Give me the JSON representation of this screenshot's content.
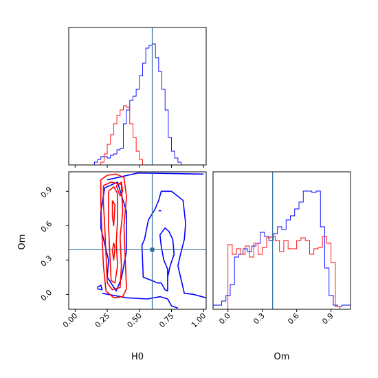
{
  "chart_data": {
    "type": "corner",
    "parameters": [
      "H0",
      "Om"
    ],
    "truth": {
      "H0": 0.6,
      "Om": 0.39
    },
    "colors": {
      "blue": "#0000ff",
      "red": "#ff0000",
      "truth": "#2f6f9f"
    },
    "ranges": {
      "H0": [
        -0.05,
        1.02
      ],
      "Om": [
        -0.13,
        1.07
      ]
    },
    "ticks": {
      "H0": {
        "values": [
          0.0,
          0.25,
          0.5,
          0.75,
          1.0
        ],
        "labels": [
          "0.00",
          "0.25",
          "0.50",
          "0.75",
          "1.00"
        ]
      },
      "Om": {
        "values": [
          0.0,
          0.3,
          0.6,
          0.9
        ],
        "labels": [
          "0.0",
          "0.3",
          "0.6",
          "0.9"
        ]
      }
    },
    "xlabels": {
      "H0": "H0",
      "Om": "Om"
    },
    "ylabels": {
      "Om": "Om"
    },
    "hist_H0": {
      "bin_width": 0.025,
      "blue": {
        "edges_start": 0.15,
        "counts": [
          0.02,
          0.04,
          0.06,
          0.06,
          0.05,
          0.07,
          0.08,
          0.11,
          0.12,
          0.3,
          0.4,
          0.47,
          0.5,
          0.55,
          0.65,
          0.74,
          0.85,
          0.87,
          0.88,
          0.78,
          0.68,
          0.55,
          0.4,
          0.2,
          0.1,
          0.05,
          0.02
        ]
      },
      "red": {
        "edges_start": 0.2,
        "counts": [
          0.02,
          0.08,
          0.15,
          0.22,
          0.3,
          0.36,
          0.4,
          0.43,
          0.42,
          0.3,
          0.2,
          0.1,
          0.04
        ]
      }
    },
    "hist_Om": {
      "bin_width": 0.0375,
      "blue": {
        "edges_start": -0.13,
        "counts": [
          0.03,
          0.03,
          0.06,
          0.1,
          0.18,
          0.38,
          0.4,
          0.44,
          0.42,
          0.46,
          0.48,
          0.56,
          0.53,
          0.5,
          0.55,
          0.6,
          0.58,
          0.65,
          0.68,
          0.73,
          0.78,
          0.86,
          0.86,
          0.85,
          0.86,
          0.6,
          0.3,
          0.1,
          0.03,
          0.02,
          0.03,
          0.03
        ]
      },
      "red": {
        "edges_start": 0.0,
        "counts": [
          0.47,
          0.4,
          0.44,
          0.4,
          0.46,
          0.38,
          0.48,
          0.4,
          0.45,
          0.52,
          0.53,
          0.5,
          0.42,
          0.5,
          0.44,
          0.44,
          0.5,
          0.52,
          0.5,
          0.4,
          0.44,
          0.45,
          0.53,
          0.48,
          0.34,
          0.02
        ]
      }
    },
    "contours": {
      "blue": [
        [
          [
            0.17,
            0.05
          ],
          [
            0.21,
            0.04
          ],
          [
            0.2,
            0.08
          ],
          [
            0.17,
            0.06
          ]
        ],
        [
          [
            0.2,
            0.58
          ],
          [
            0.26,
            0.3
          ],
          [
            0.25,
            0.15
          ],
          [
            0.32,
            0.03
          ],
          [
            0.36,
            0.14
          ],
          [
            0.4,
            0.38
          ],
          [
            0.4,
            0.72
          ],
          [
            0.33,
            0.98
          ],
          [
            0.23,
            0.93
          ],
          [
            0.2,
            0.72
          ],
          [
            0.2,
            0.58
          ]
        ],
        [
          [
            0.25,
            1.0
          ],
          [
            0.49,
            1.06
          ],
          [
            1.0,
            1.05
          ]
        ],
        [
          [
            0.21,
            0.01
          ],
          [
            0.4,
            -0.03
          ],
          [
            0.56,
            -0.04
          ],
          [
            0.66,
            -0.02
          ],
          [
            0.72,
            -0.04
          ],
          [
            0.75,
            -0.1
          ],
          [
            0.8,
            -0.12
          ]
        ],
        [
          [
            1.02,
            -0.03
          ],
          [
            0.92,
            0.0
          ],
          [
            0.85,
            0.01
          ],
          [
            0.8,
            0.25
          ],
          [
            0.82,
            0.35
          ],
          [
            0.85,
            0.48
          ],
          [
            0.86,
            0.62
          ],
          [
            0.84,
            0.82
          ],
          [
            0.75,
            0.9
          ],
          [
            0.67,
            0.9
          ],
          [
            0.65,
            0.82
          ],
          [
            0.62,
            0.74
          ],
          [
            0.57,
            0.65
          ],
          [
            0.54,
            0.48
          ],
          [
            0.52,
            0.43
          ],
          [
            0.53,
            0.15
          ],
          [
            0.6,
            0.12
          ],
          [
            0.64,
            0.1
          ],
          [
            0.67,
            0.1
          ],
          [
            0.7,
            0.04
          ],
          [
            0.72,
            0.03
          ],
          [
            0.72,
            0.22
          ],
          [
            0.69,
            0.3
          ],
          [
            0.67,
            0.42
          ],
          [
            0.66,
            0.52
          ],
          [
            0.7,
            0.58
          ],
          [
            0.73,
            0.55
          ],
          [
            0.76,
            0.48
          ],
          [
            0.77,
            0.35
          ],
          [
            0.74,
            0.25
          ],
          [
            0.72,
            0.15
          ]
        ],
        [
          [
            0.65,
            0.73
          ],
          [
            0.67,
            0.73
          ]
        ]
      ],
      "red": [
        [
          [
            0.2,
            1.0
          ],
          [
            0.25,
            1.04
          ],
          [
            0.32,
            1.05
          ],
          [
            0.38,
            1.02
          ],
          [
            0.4,
            0.85
          ],
          [
            0.38,
            0.6
          ],
          [
            0.39,
            0.3
          ],
          [
            0.4,
            0.05
          ],
          [
            0.37,
            -0.02
          ],
          [
            0.3,
            -0.03
          ],
          [
            0.24,
            0.03
          ],
          [
            0.22,
            0.25
          ],
          [
            0.21,
            0.5
          ],
          [
            0.2,
            0.8
          ],
          [
            0.2,
            1.0
          ]
        ],
        [
          [
            0.22,
            0.95
          ],
          [
            0.28,
            0.98
          ],
          [
            0.36,
            0.96
          ],
          [
            0.37,
            0.72
          ],
          [
            0.35,
            0.5
          ],
          [
            0.36,
            0.25
          ],
          [
            0.35,
            0.06
          ],
          [
            0.29,
            0.04
          ],
          [
            0.25,
            0.1
          ],
          [
            0.24,
            0.35
          ],
          [
            0.23,
            0.6
          ],
          [
            0.22,
            0.8
          ],
          [
            0.22,
            0.95
          ]
        ],
        [
          [
            0.26,
            0.9
          ],
          [
            0.3,
            0.94
          ],
          [
            0.33,
            0.88
          ],
          [
            0.33,
            0.65
          ],
          [
            0.32,
            0.45
          ],
          [
            0.33,
            0.25
          ],
          [
            0.31,
            0.1
          ],
          [
            0.28,
            0.12
          ],
          [
            0.27,
            0.35
          ],
          [
            0.26,
            0.6
          ],
          [
            0.26,
            0.9
          ]
        ],
        [
          [
            0.29,
            0.82
          ],
          [
            0.31,
            0.78
          ],
          [
            0.3,
            0.6
          ],
          [
            0.29,
            0.68
          ],
          [
            0.29,
            0.82
          ]
        ],
        [
          [
            0.3,
            0.45
          ],
          [
            0.31,
            0.4
          ],
          [
            0.3,
            0.3
          ],
          [
            0.29,
            0.38
          ],
          [
            0.3,
            0.45
          ]
        ],
        [
          [
            0.32,
            0.95
          ],
          [
            0.36,
            0.98
          ],
          [
            0.37,
            0.9
          ],
          [
            0.35,
            0.86
          ],
          [
            0.32,
            0.95
          ]
        ]
      ]
    }
  }
}
